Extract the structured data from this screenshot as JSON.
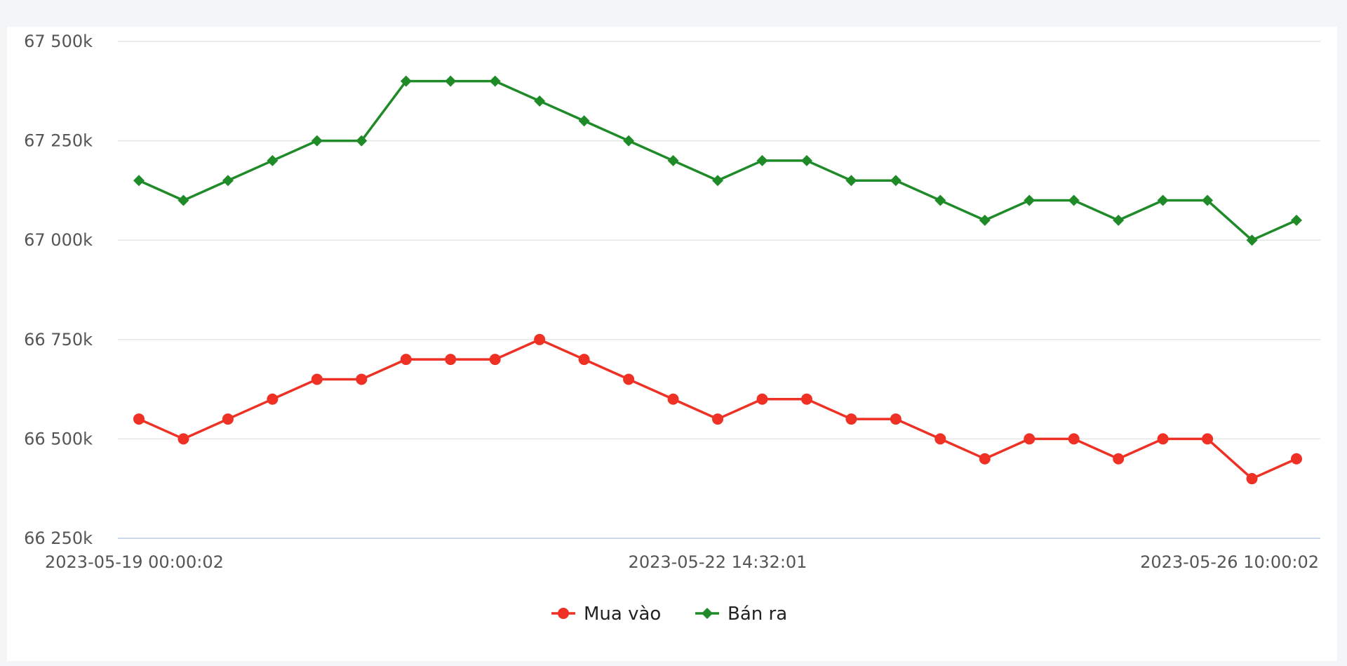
{
  "chart_data": {
    "type": "line",
    "title": "",
    "xlabel": "",
    "ylabel": "",
    "ylim": [
      66250,
      67500
    ],
    "y_ticks": [
      {
        "value": 67500,
        "label": "67 500k"
      },
      {
        "value": 67250,
        "label": "67 250k"
      },
      {
        "value": 67000,
        "label": "67 000k"
      },
      {
        "value": 66750,
        "label": "66 750k"
      },
      {
        "value": 66500,
        "label": "66 500k"
      },
      {
        "value": 66250,
        "label": "66 250k"
      }
    ],
    "x_tick_labels": [
      {
        "index": 0,
        "label": "2023-05-19 00:00:02"
      },
      {
        "index": 13,
        "label": "2023-05-22 14:32:01"
      },
      {
        "index": 26,
        "label": "2023-05-26 10:00:02"
      }
    ],
    "grid": true,
    "legend": "bottom-center",
    "series": [
      {
        "name": "Mua vào",
        "color": "#ee3124",
        "marker": "circle",
        "values": [
          66550,
          66500,
          66550,
          66600,
          66650,
          66650,
          66700,
          66700,
          66700,
          66750,
          66700,
          66650,
          66600,
          66550,
          66600,
          66600,
          66550,
          66550,
          66500,
          66450,
          66500,
          66500,
          66450,
          66500,
          66500,
          66400,
          66450
        ]
      },
      {
        "name": "Bán ra",
        "color": "#1f8a28",
        "marker": "diamond",
        "values": [
          67150,
          67100,
          67150,
          67200,
          67250,
          67250,
          67400,
          67400,
          67400,
          67350,
          67300,
          67250,
          67200,
          67150,
          67200,
          67200,
          67150,
          67150,
          67100,
          67050,
          67100,
          67100,
          67050,
          67100,
          67100,
          67000,
          67050
        ]
      }
    ]
  }
}
